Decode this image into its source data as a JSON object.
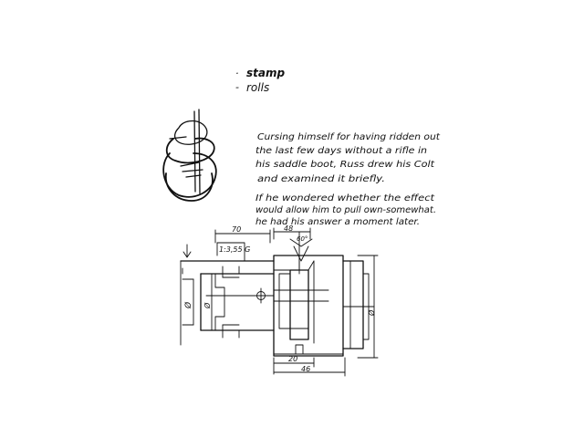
{
  "notes": {
    "list": [
      {
        "bullet": "·",
        "text": "stamp"
      },
      {
        "bullet": "-",
        "text": "rolls"
      }
    ]
  },
  "paragraph_1": {
    "lines": [
      "Cursing himself for having ridden out",
      "the last few days without a rifle in",
      "his saddle boot, Russ drew his Colt",
      "and examined it briefly."
    ]
  },
  "paragraph_2": {
    "lines": [
      "If he wondered whether the effect",
      "would allow him to pull own-somewhat.",
      "he had his answer a moment later."
    ]
  },
  "drawing": {
    "dimensions": {
      "top_left": "70",
      "top_mid": "48",
      "thread": "1:3,55 G",
      "angle": "60°",
      "left_dia": "Ø",
      "inner_dia": "Ø",
      "right_dia": "Ø",
      "bottom_inner": "20",
      "bottom_outer": "46"
    }
  }
}
